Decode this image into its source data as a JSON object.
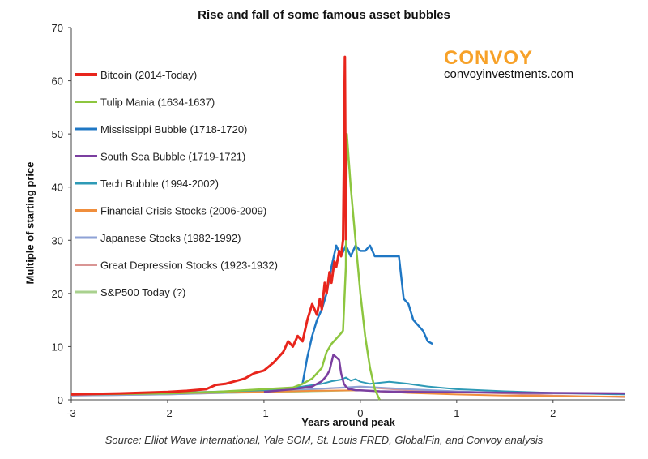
{
  "title": "Rise and fall of some famous asset bubbles",
  "brand": {
    "name": "CONVOY",
    "url": "convoyinvestments.com",
    "accent": "#f7a128"
  },
  "source": "Source: Elliot Wave International, Yale SOM, St. Louis FRED, GlobalFin, and Convoy analysis",
  "chart_data": {
    "type": "line",
    "title": "Rise and fall of some famous asset bubbles",
    "xlabel": "Years around peak",
    "ylabel": "Multiple of starting price",
    "xlim": [
      -3,
      2.75
    ],
    "ylim": [
      0,
      70
    ],
    "xticks": [
      -3,
      -2,
      -1,
      0,
      1,
      2
    ],
    "yticks": [
      0,
      10,
      20,
      30,
      40,
      50,
      60,
      70
    ],
    "grid": false,
    "legend_position": "top-left",
    "series": [
      {
        "name": "Bitcoin (2014-Today)",
        "color": "#e8251c",
        "width": 3,
        "x": [
          -3.0,
          -2.5,
          -2.0,
          -1.8,
          -1.6,
          -1.5,
          -1.4,
          -1.3,
          -1.2,
          -1.1,
          -1.0,
          -0.9,
          -0.85,
          -0.8,
          -0.75,
          -0.7,
          -0.65,
          -0.6,
          -0.55,
          -0.5,
          -0.45,
          -0.42,
          -0.4,
          -0.37,
          -0.35,
          -0.32,
          -0.3,
          -0.27,
          -0.25,
          -0.22,
          -0.2,
          -0.18,
          -0.17,
          -0.16,
          -0.15
        ],
        "y": [
          1.0,
          1.2,
          1.5,
          1.7,
          2.0,
          2.8,
          3.0,
          3.5,
          4.0,
          5.0,
          5.5,
          7.0,
          8.0,
          9.0,
          11.0,
          10.0,
          12.0,
          11.0,
          15.0,
          18.0,
          16.0,
          19.0,
          17.0,
          22.0,
          20.0,
          24.0,
          22.0,
          26.0,
          25.0,
          28.0,
          27.0,
          30.0,
          45.0,
          64.5,
          30.0
        ]
      },
      {
        "name": "Tulip Mania (1634-1637)",
        "color": "#8dc63f",
        "width": 2.5,
        "x": [
          -3.0,
          -2.0,
          -1.5,
          -1.0,
          -0.7,
          -0.6,
          -0.5,
          -0.4,
          -0.35,
          -0.3,
          -0.25,
          -0.2,
          -0.18,
          -0.15,
          -0.14,
          -0.1,
          -0.05,
          0.0,
          0.05,
          0.1,
          0.15,
          0.2
        ],
        "y": [
          1.0,
          1.2,
          1.5,
          2.0,
          2.3,
          3.0,
          4.0,
          6.0,
          9.0,
          10.5,
          11.5,
          12.5,
          13.0,
          25.0,
          50.0,
          40.0,
          30.0,
          20.0,
          12.0,
          6.0,
          2.0,
          0.0
        ]
      },
      {
        "name": "Mississippi Bubble (1718-1720)",
        "color": "#1f77c4",
        "width": 2.5,
        "x": [
          -0.6,
          -0.55,
          -0.5,
          -0.45,
          -0.4,
          -0.35,
          -0.3,
          -0.25,
          -0.2,
          -0.15,
          -0.1,
          -0.05,
          0.0,
          0.05,
          0.1,
          0.15,
          0.2,
          0.25,
          0.3,
          0.4,
          0.45,
          0.5,
          0.55,
          0.6,
          0.65,
          0.7,
          0.75
        ],
        "y": [
          3.0,
          8.0,
          12.0,
          15.0,
          17.0,
          20.0,
          25.0,
          29.0,
          27.0,
          29.0,
          27.0,
          29.0,
          28.0,
          28.0,
          29.0,
          27.0,
          27.0,
          27.0,
          27.0,
          27.0,
          19.0,
          18.0,
          15.0,
          14.0,
          13.0,
          11.0,
          10.5
        ]
      },
      {
        "name": "South Sea Bubble (1719-1721)",
        "color": "#7b3fa0",
        "width": 2.5,
        "x": [
          -1.0,
          -0.7,
          -0.5,
          -0.45,
          -0.4,
          -0.35,
          -0.32,
          -0.3,
          -0.28,
          -0.25,
          -0.22,
          -0.2,
          -0.17,
          -0.15,
          -0.12,
          -0.1,
          -0.05,
          0.0,
          0.2,
          0.5,
          1.0,
          2.0,
          2.75
        ],
        "y": [
          1.5,
          2.0,
          2.5,
          3.0,
          3.5,
          4.5,
          5.5,
          7.0,
          8.5,
          8.0,
          7.5,
          5.0,
          3.0,
          2.5,
          2.0,
          2.0,
          1.8,
          1.8,
          1.6,
          1.5,
          1.4,
          1.3,
          1.2
        ]
      },
      {
        "name": "Tech Bubble (1994-2002)",
        "color": "#2e9ab6",
        "width": 2,
        "x": [
          -3.0,
          -2.0,
          -1.0,
          -0.6,
          -0.4,
          -0.3,
          -0.2,
          -0.15,
          -0.1,
          -0.05,
          0.0,
          0.1,
          0.2,
          0.3,
          0.4,
          0.5,
          0.7,
          1.0,
          1.5,
          2.0,
          2.75
        ],
        "y": [
          1.0,
          1.3,
          1.8,
          2.5,
          3.0,
          3.5,
          3.8,
          4.2,
          3.6,
          3.9,
          3.4,
          3.0,
          3.2,
          3.4,
          3.2,
          3.0,
          2.5,
          2.0,
          1.6,
          1.3,
          1.0
        ]
      },
      {
        "name": "Financial Crisis Stocks (2006-2009)",
        "color": "#f08e3c",
        "width": 2,
        "x": [
          -3.0,
          -2.0,
          -1.0,
          -0.5,
          0.0,
          0.5,
          1.0,
          1.5,
          2.0,
          2.75
        ],
        "y": [
          1.0,
          1.2,
          1.5,
          1.7,
          1.8,
          1.3,
          1.0,
          0.8,
          0.7,
          0.6
        ]
      },
      {
        "name": "Japanese Stocks (1982-1992)",
        "color": "#8ea2d6",
        "width": 2,
        "x": [
          -3.0,
          -2.0,
          -1.0,
          -0.5,
          0.0,
          0.5,
          1.0,
          1.5,
          2.0,
          2.75
        ],
        "y": [
          0.8,
          1.0,
          1.5,
          2.0,
          2.5,
          2.0,
          1.6,
          1.3,
          1.2,
          1.1
        ]
      },
      {
        "name": "Great Depression Stocks (1923-1932)",
        "color": "#d99594",
        "width": 2,
        "x": [
          -3.0,
          -2.0,
          -1.0,
          -0.5,
          0.0,
          0.5,
          1.0,
          1.5,
          2.0,
          2.75
        ],
        "y": [
          0.8,
          1.0,
          1.6,
          2.0,
          2.4,
          1.8,
          1.5,
          1.2,
          0.8,
          0.5
        ]
      },
      {
        "name": "S&P500 Today (?)",
        "color": "#a9d18e",
        "width": 2,
        "x": [
          -3.0,
          -2.0,
          -1.0,
          -0.5,
          0.0
        ],
        "y": [
          0.9,
          1.1,
          1.4,
          1.6,
          1.8
        ]
      }
    ]
  }
}
